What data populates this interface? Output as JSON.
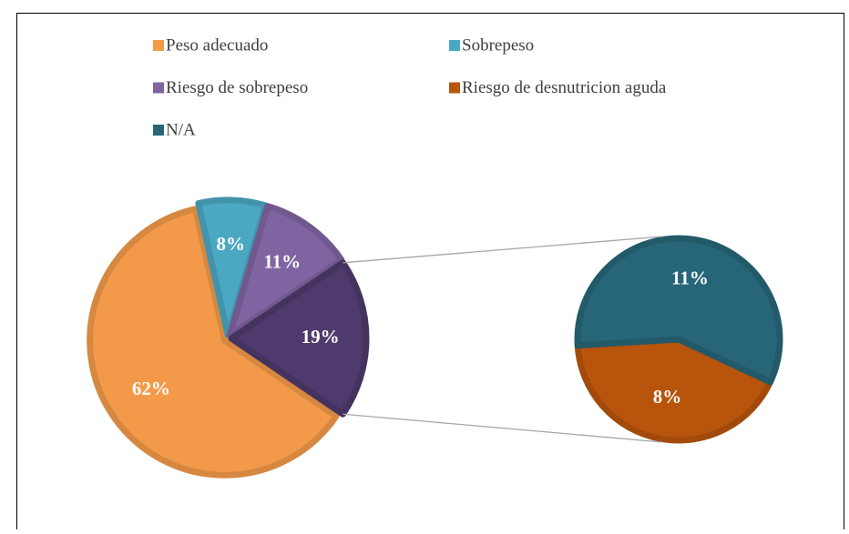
{
  "chart_data": {
    "type": "pie-of-pie",
    "categories": [
      "Peso adecuado",
      "Sobrepeso",
      "Riesgo de sobrepeso",
      null
    ],
    "values": [
      62,
      8,
      11,
      19
    ],
    "value_labels": [
      "62%",
      "8%",
      "11%",
      "19%"
    ],
    "colors": [
      "#f39a4a",
      "#4ba8c3",
      "#8064a2",
      "#4e3a6c"
    ],
    "secondary": {
      "categories": [
        "Riesgo de desnutricion aguda",
        "N/A"
      ],
      "values": [
        8,
        11
      ],
      "value_labels": [
        "8%",
        "11%"
      ],
      "colors": [
        "#b8540c",
        "#276679"
      ]
    },
    "legend": "top"
  }
}
